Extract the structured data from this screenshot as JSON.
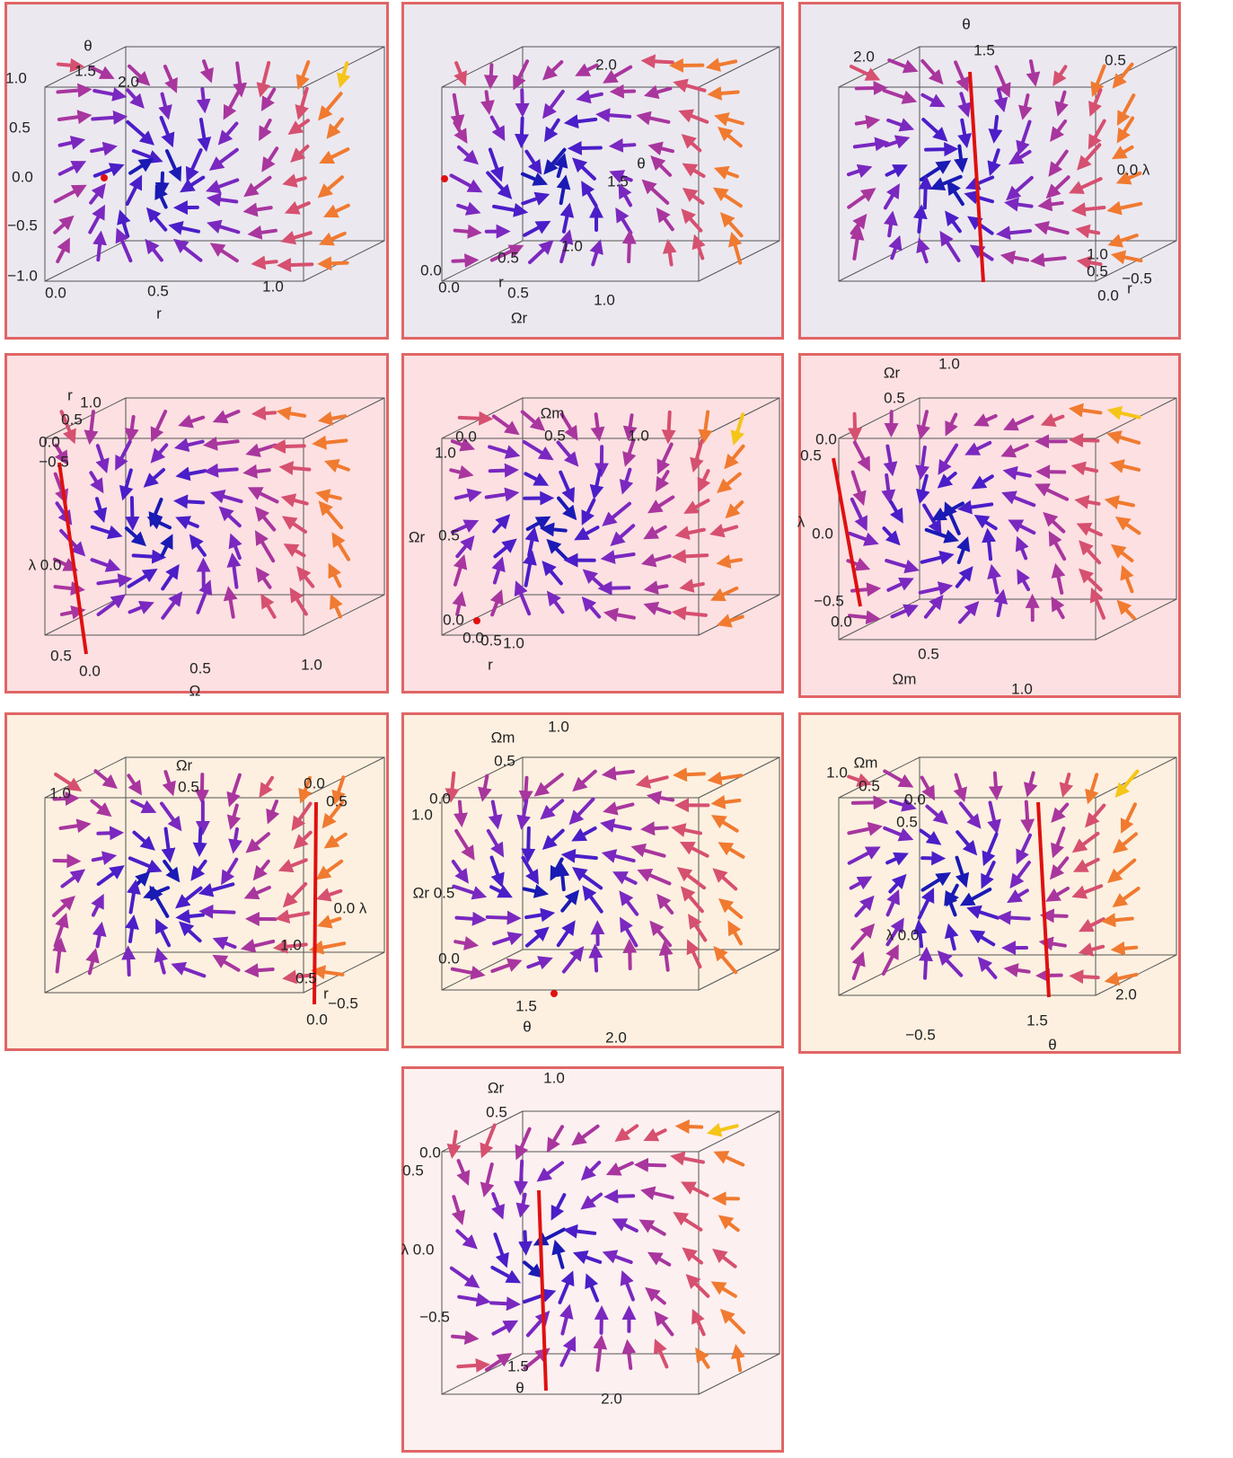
{
  "panels": [
    {
      "labels": [
        "θ",
        "1.5",
        "2.0",
        "1.0",
        "0.5",
        "0.0",
        "−0.5",
        "−1.0",
        "0.0",
        "0.5",
        "1.0",
        "r"
      ]
    },
    {
      "labels": [
        "2.0",
        "θ",
        "1.5",
        "1.0",
        "0.5",
        "0.0",
        "0.0",
        "r",
        "0.5",
        "1.0",
        "Ωr"
      ]
    },
    {
      "labels": [
        "θ",
        "2.0",
        "1.5",
        "0.5",
        "0.0 λ",
        "1.0",
        "0.5",
        "−0.5",
        "0.0",
        "r"
      ]
    },
    {
      "labels": [
        "r",
        "1.0",
        "0.5",
        "0.0",
        "−0.5",
        "λ 0.0",
        "0.5",
        "0.0",
        "0.5",
        "1.0",
        "Ω"
      ]
    },
    {
      "labels": [
        "Ωm",
        "0.0",
        "0.5",
        "1.0",
        "1.0",
        "Ωr",
        "0.5",
        "0.0",
        "0.0",
        "0.5",
        "1.0",
        "r"
      ]
    },
    {
      "labels": [
        "Ωr",
        "1.0",
        "0.5",
        "0.0",
        "0.5",
        "λ",
        "0.0",
        "−0.5",
        "0.0",
        "0.5",
        "Ωm",
        "1.0"
      ]
    },
    {
      "labels": [
        "Ωr",
        "1.0",
        "0.5",
        "0.0",
        "0.5",
        "0.0 λ",
        "1.0",
        "0.5",
        "r",
        "−0.5",
        "0.0"
      ]
    },
    {
      "labels": [
        "Ωm",
        "1.0",
        "0.5",
        "0.0",
        "1.0",
        "Ωr 0.5",
        "0.0",
        "1.5",
        "θ",
        "2.0"
      ]
    },
    {
      "labels": [
        "Ωm",
        "1.0",
        "0.5",
        "0.0",
        "0.5",
        "λ 0.0",
        "2.0",
        "1.5",
        "−0.5",
        "θ"
      ]
    },
    {
      "labels": [
        "1.0",
        "Ωr",
        "0.5",
        "0.0",
        "0.5",
        "λ 0.0",
        "−0.5",
        "1.5",
        "θ",
        "2.0"
      ]
    }
  ]
}
